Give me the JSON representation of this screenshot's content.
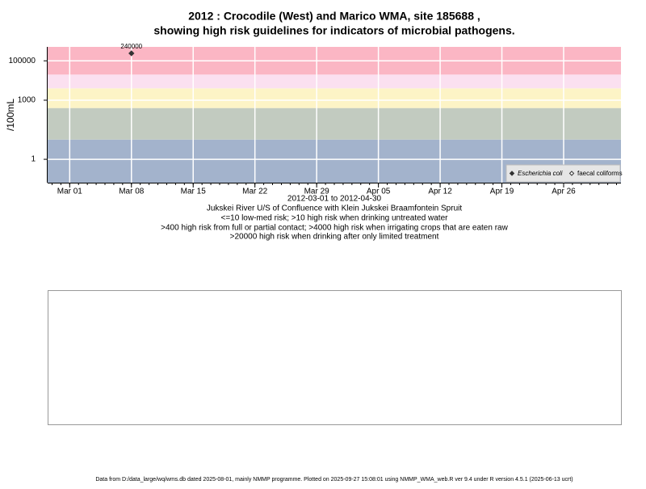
{
  "chart_data": {
    "type": "scatter",
    "title": "2012 : Crocodile (West) and Marico WMA, site 185688 ,",
    "title_line2": "showing high risk guidelines for indicators of microbial pathogens.",
    "ylabel": "/100mL",
    "xlabel": "2012-03-01 to 2012-04-30",
    "subtitle": [
      "Jukskei River U/S of Confluence with Klein Jukskei Braamfontein Spruit",
      "<=10 low-med risk; >10 high risk when drinking untreated water",
      ">400 high risk from full or partial contact; >4000 high risk when irrigating crops that are eaten raw",
      ">20000 high risk when drinking after only limited treatment"
    ],
    "log_y": true,
    "grid": true,
    "legend_position": "bottom-right",
    "ylim": [
      0.065,
      510000
    ],
    "yticks": [
      1,
      1000,
      100000
    ],
    "xlim": [
      "2012-02-27T12:00",
      "2012-05-02T12:00"
    ],
    "xticks": [
      {
        "value": "2012-03-01",
        "label": "Mar 01"
      },
      {
        "value": "2012-03-08",
        "label": "Mar 08"
      },
      {
        "value": "2012-03-15",
        "label": "Mar 15"
      },
      {
        "value": "2012-03-22",
        "label": "Mar 22"
      },
      {
        "value": "2012-03-29",
        "label": "Mar 29"
      },
      {
        "value": "2012-04-05",
        "label": "Apr 05"
      },
      {
        "value": "2012-04-12",
        "label": "Apr 12"
      },
      {
        "value": "2012-04-19",
        "label": "Apr 19"
      },
      {
        "value": "2012-04-26",
        "label": "Apr 26"
      }
    ],
    "bands": [
      {
        "from": 0.065,
        "to": 10,
        "color": "#a3b3cc"
      },
      {
        "from": 10,
        "to": 400,
        "color": "#c2cbc0"
      },
      {
        "from": 400,
        "to": 4000,
        "color": "#fdf4c6"
      },
      {
        "from": 4000,
        "to": 20000,
        "color": "#fbe0f0"
      },
      {
        "from": 20000,
        "to": 510000,
        "color": "#fbb6c4"
      }
    ],
    "x": [
      "2012-03-08"
    ],
    "series": [
      {
        "name": "Escherichia coli",
        "color": "#333333",
        "marker": "filled",
        "values": [
          240000
        ],
        "value_labels": [
          "240000"
        ]
      },
      {
        "name": "faecal coliforms",
        "color": "#333333",
        "marker": "open",
        "values": [
          null
        ]
      }
    ],
    "footer": "Data from D:/data_large/wq/wms.db dated 2025-08-01, mainly NMMP programme. Plotted on 2025-09-27 15:08:01 using NMMP_WMA_web.R ver 9.4 under R version 4.5.1 (2025-06-13 ucrt)"
  }
}
